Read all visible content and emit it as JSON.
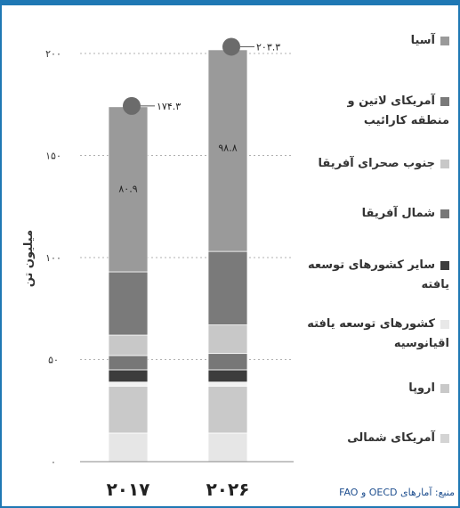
{
  "chart_data": {
    "type": "bar",
    "stacked": true,
    "ylabel": "میلیون تن",
    "ylim": [
      0,
      200
    ],
    "yticks": [
      "۰",
      "۵۰",
      "۱۰۰",
      "۱۵۰",
      "۲۰۰"
    ],
    "ytick_values": [
      0,
      50,
      100,
      150,
      200
    ],
    "grid": "dotted horizontal at ticks",
    "categories": [
      "۲۰۱۷",
      "۲۰۲۶"
    ],
    "totals": [
      174.3,
      203.3
    ],
    "total_labels": [
      "۱۷۴.۳",
      "۲۰۳.۳"
    ],
    "series": [
      {
        "name": "آمریکای شمالی",
        "values": [
          14,
          14
        ],
        "color": "#e6e6e6"
      },
      {
        "name": "اروپا",
        "values": [
          23,
          23
        ],
        "color": "#c9c9c9"
      },
      {
        "name": "کشورهای توسعه یافته اقیانوسیه",
        "values": [
          2,
          2
        ],
        "color": "#f2f2f2"
      },
      {
        "name": "سایر کشورهای توسعه یافته",
        "values": [
          6,
          6
        ],
        "color": "#3c3c3c"
      },
      {
        "name": "شمال آفریقا",
        "values": [
          7,
          8
        ],
        "color": "#777777"
      },
      {
        "name": "جنوب صحرای آفریقا",
        "values": [
          10,
          14
        ],
        "color": "#c8c8c8"
      },
      {
        "name": "آمریکای لاتین و منطقه کارائیب",
        "values": [
          31,
          36
        ],
        "color": "#7a7a7a"
      },
      {
        "name": "آسیا",
        "values": [
          80.9,
          98.8
        ],
        "color": "#9a9a9a"
      }
    ],
    "asia_labels": [
      "۸۰.۹",
      "۹۸.۸"
    ],
    "legend": "right",
    "marker_color": "#6b6b6b"
  },
  "legend_items": [
    {
      "label": "آسیا",
      "color": "#9a9a9a"
    },
    {
      "label": "آمریکای لاتین و منطقه کارائیب",
      "color": "#7a7a7a"
    },
    {
      "label": "جنوب صحرای آفریقا",
      "color": "#c8c8c8"
    },
    {
      "label": "شمال آفریقا",
      "color": "#777777"
    },
    {
      "label": "سایر کشورهای توسعه یافته",
      "color": "#3c3c3c"
    },
    {
      "label": "کشورهای توسعه یافته اقیانوسیه",
      "color": "#e8e8e8"
    },
    {
      "label": "اروپا",
      "color": "#c9c9c9"
    },
    {
      "label": "آمریکای شمالی",
      "color": "#d4d4d4"
    }
  ],
  "source": "منبع: آمارهای OECD و FAO",
  "frame_color": "#1f78b4"
}
